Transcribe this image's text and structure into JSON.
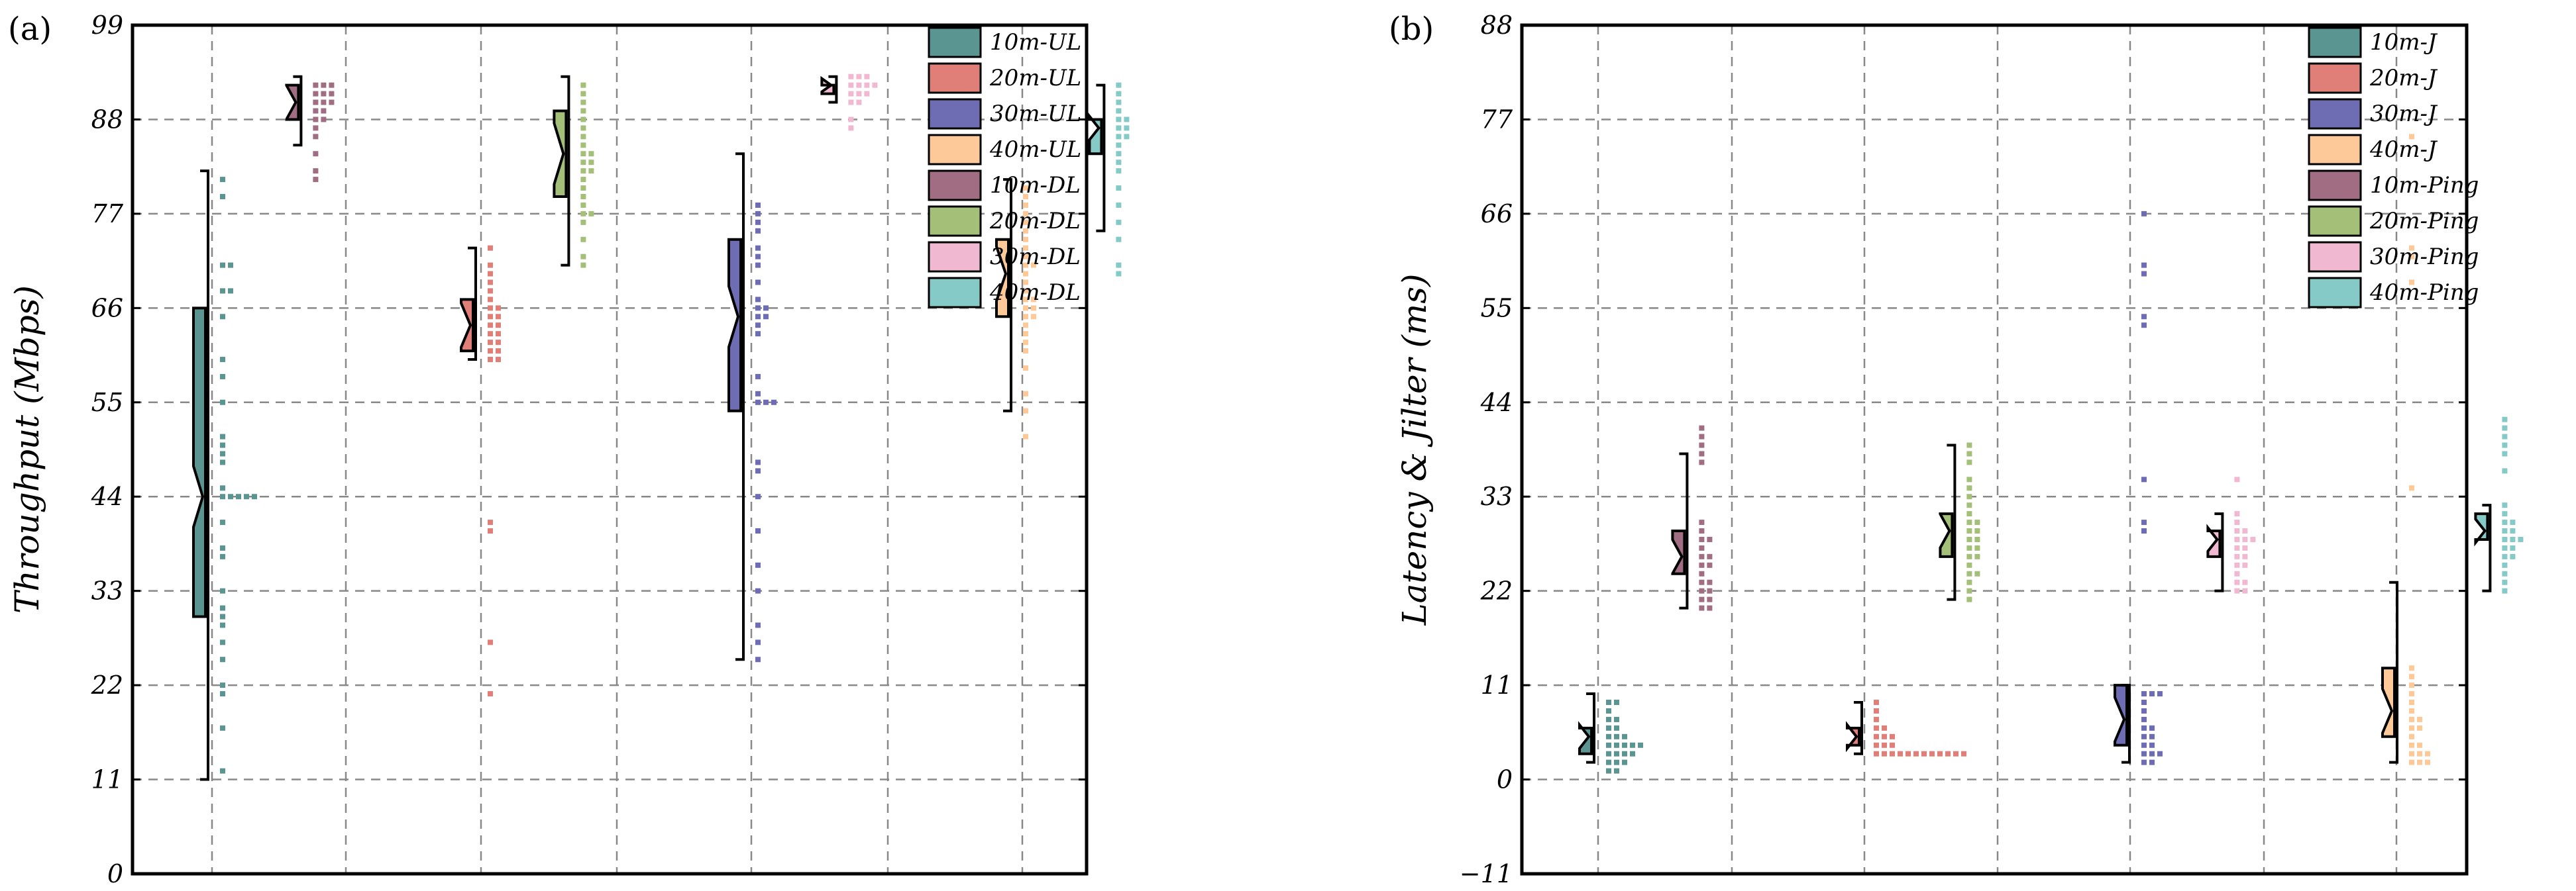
{
  "chart_data": [
    {
      "type": "raincloud-box",
      "panel_label": "(a)",
      "ylabel": "Throughput (Mbps)",
      "ylim": [
        0,
        99
      ],
      "yticks": [
        0,
        11,
        22,
        33,
        44,
        55,
        66,
        77,
        88,
        99
      ],
      "grid": true,
      "legend_position": "top-right",
      "series": [
        {
          "name": "10m-UL",
          "color": "#5b9591",
          "whisker": [
            11,
            82
          ],
          "box": [
            30,
            66
          ],
          "median": 44,
          "points": [
            12,
            17,
            21,
            22,
            25,
            27,
            29,
            30,
            31,
            33,
            37,
            38,
            41,
            44,
            44,
            44,
            44,
            44,
            45,
            48,
            49,
            50,
            51,
            55,
            58,
            60,
            65,
            68,
            68,
            71,
            71,
            79,
            81
          ]
        },
        {
          "name": "20m-UL",
          "color": "#e07f78",
          "whisker": [
            60,
            73
          ],
          "box": [
            61,
            67
          ],
          "median": 64,
          "points": [
            21,
            27,
            40,
            41,
            60,
            60,
            61,
            61,
            62,
            62,
            63,
            63,
            64,
            64,
            65,
            65,
            66,
            66,
            67,
            68,
            69,
            70,
            71,
            73
          ]
        },
        {
          "name": "30m-UL",
          "color": "#6e6cb2",
          "whisker": [
            25,
            84
          ],
          "box": [
            54,
            74
          ],
          "median": 65,
          "points": [
            25,
            27,
            29,
            33,
            36,
            40,
            44,
            47,
            48,
            55,
            55,
            55,
            56,
            58,
            63,
            64,
            65,
            65,
            66,
            66,
            67,
            69,
            71,
            72,
            73,
            75,
            76,
            77,
            78
          ]
        },
        {
          "name": "40m-UL",
          "color": "#fdc998",
          "whisker": [
            54,
            81
          ],
          "box": [
            65,
            74
          ],
          "median": 70,
          "points": [
            51,
            54,
            56,
            59,
            61,
            62,
            63,
            64,
            65,
            65,
            66,
            66,
            67,
            67,
            68,
            69,
            70,
            71,
            71,
            72,
            73,
            74,
            75,
            76,
            77,
            78,
            79,
            80
          ]
        },
        {
          "name": "10m-DL",
          "color": "#a06d82",
          "whisker": [
            85,
            93
          ],
          "box": [
            88,
            92
          ],
          "median": 90,
          "points": [
            81,
            82,
            84,
            86,
            87,
            88,
            88,
            89,
            89,
            90,
            90,
            90,
            91,
            91,
            91,
            92,
            92,
            92
          ]
        },
        {
          "name": "20m-DL",
          "color": "#a3bf78",
          "whisker": [
            71,
            93
          ],
          "box": [
            79,
            89
          ],
          "median": 84,
          "points": [
            71,
            72,
            74,
            76,
            77,
            77,
            78,
            79,
            80,
            81,
            82,
            82,
            83,
            83,
            84,
            84,
            85,
            86,
            87,
            88,
            89,
            90,
            91,
            92
          ]
        },
        {
          "name": "30m-DL",
          "color": "#f1b8d1",
          "whisker": [
            90,
            93
          ],
          "box": [
            91,
            92
          ],
          "median": 92,
          "points": [
            87,
            88,
            90,
            90,
            91,
            91,
            91,
            92,
            92,
            92,
            92,
            93,
            93,
            93
          ]
        },
        {
          "name": "40m-DL",
          "color": "#86cac7",
          "whisker": [
            75,
            92
          ],
          "box": [
            84,
            88
          ],
          "median": 87,
          "points": [
            70,
            71,
            74,
            76,
            78,
            80,
            82,
            83,
            84,
            85,
            86,
            86,
            87,
            87,
            88,
            88,
            89,
            90,
            91,
            92
          ]
        }
      ]
    },
    {
      "type": "raincloud-box",
      "panel_label": "(b)",
      "ylabel": "Latency & Jilter (ms)",
      "ylim": [
        -11,
        88
      ],
      "yticks": [
        -11,
        0,
        11,
        22,
        33,
        44,
        55,
        66,
        77,
        88
      ],
      "ytick_labels": [
        "−11",
        "0",
        "11",
        "22",
        "33",
        "44",
        "55",
        "66",
        "77",
        "88"
      ],
      "grid": true,
      "legend_position": "top-right",
      "series": [
        {
          "name": "10m-J",
          "color": "#5b9591",
          "whisker": [
            2,
            10
          ],
          "box": [
            3,
            6
          ],
          "median": 5,
          "points": [
            1,
            1,
            2,
            2,
            2,
            3,
            3,
            3,
            3,
            4,
            4,
            4,
            4,
            4,
            5,
            5,
            5,
            6,
            6,
            7,
            7,
            8,
            9,
            9
          ]
        },
        {
          "name": "20m-J",
          "color": "#e07f78",
          "whisker": [
            3,
            9
          ],
          "box": [
            4,
            6
          ],
          "median": 5,
          "points": [
            3,
            3,
            3,
            3,
            3,
            3,
            3,
            3,
            3,
            3,
            3,
            3,
            4,
            4,
            4,
            5,
            5,
            5,
            6,
            6,
            7,
            8,
            9
          ]
        },
        {
          "name": "30m-J",
          "color": "#6e6cb2",
          "whisker": [
            2,
            11
          ],
          "box": [
            4,
            11
          ],
          "median": 7,
          "points": [
            2,
            2,
            3,
            3,
            3,
            4,
            4,
            5,
            5,
            6,
            6,
            7,
            8,
            9,
            10,
            10,
            10,
            29,
            30,
            35,
            53,
            54,
            59,
            60,
            66
          ]
        },
        {
          "name": "40m-J",
          "color": "#fdc998",
          "whisker": [
            2,
            23
          ],
          "box": [
            5,
            13
          ],
          "median": 8,
          "points": [
            2,
            2,
            2,
            3,
            3,
            3,
            4,
            4,
            5,
            6,
            6,
            7,
            7,
            8,
            9,
            10,
            11,
            12,
            13,
            34,
            58,
            61,
            62,
            75
          ]
        },
        {
          "name": "10m-Ping",
          "color": "#a06d82",
          "whisker": [
            20,
            38
          ],
          "box": [
            24,
            29
          ],
          "median": 26,
          "points": [
            20,
            20,
            21,
            21,
            22,
            22,
            23,
            23,
            24,
            25,
            25,
            26,
            26,
            27,
            28,
            28,
            29,
            30,
            37,
            38,
            39,
            40,
            41
          ]
        },
        {
          "name": "20m-Ping",
          "color": "#a3bf78",
          "whisker": [
            21,
            39
          ],
          "box": [
            26,
            31
          ],
          "median": 29,
          "points": [
            21,
            22,
            23,
            24,
            24,
            25,
            26,
            26,
            27,
            27,
            28,
            28,
            29,
            29,
            30,
            30,
            31,
            32,
            33,
            34,
            35,
            37,
            38,
            39
          ]
        },
        {
          "name": "30m-Ping",
          "color": "#f1b8d1",
          "whisker": [
            22,
            31
          ],
          "box": [
            26,
            29
          ],
          "median": 28,
          "points": [
            22,
            22,
            23,
            23,
            24,
            25,
            25,
            26,
            26,
            27,
            27,
            28,
            28,
            28,
            29,
            29,
            30,
            31,
            35
          ]
        },
        {
          "name": "40m-Ping",
          "color": "#86cac7",
          "whisker": [
            22,
            32
          ],
          "box": [
            28,
            31
          ],
          "median": 29,
          "points": [
            22,
            23,
            24,
            25,
            26,
            26,
            27,
            27,
            28,
            28,
            28,
            29,
            29,
            30,
            30,
            31,
            32,
            36,
            38,
            39,
            40,
            41,
            42
          ]
        }
      ]
    }
  ]
}
